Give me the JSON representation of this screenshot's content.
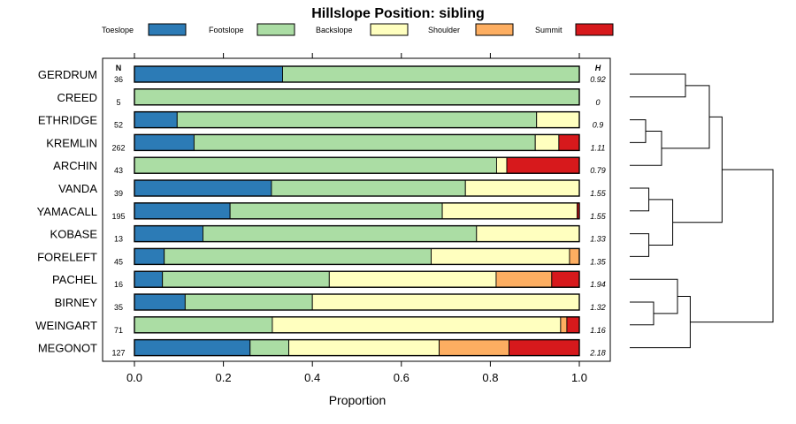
{
  "chart_data": {
    "type": "bar",
    "orientation": "horizontal-stacked",
    "title": "Hillslope Position: sibling",
    "xlabel": "Proportion",
    "ylabel": "",
    "xlim": [
      0,
      1
    ],
    "xticks": [
      "0.0",
      "0.2",
      "0.4",
      "0.6",
      "0.8",
      "1.0"
    ],
    "n_header": "N",
    "h_header": "H",
    "legend": [
      {
        "name": "Toeslope",
        "color": "#2c7bb6"
      },
      {
        "name": "Footslope",
        "color": "#abdda4"
      },
      {
        "name": "Backslope",
        "color": "#ffffbf"
      },
      {
        "name": "Shoulder",
        "color": "#fdae61"
      },
      {
        "name": "Summit",
        "color": "#d7191c"
      }
    ],
    "categories": [
      "GERDRUM",
      "CREED",
      "ETHRIDGE",
      "KREMLIN",
      "ARCHIN",
      "VANDA",
      "YAMACALL",
      "KOBASE",
      "FORELEFT",
      "PACHEL",
      "BIRNEY",
      "WEINGART",
      "MEGONOT"
    ],
    "n": [
      "36",
      "5",
      "52",
      "262",
      "43",
      "39",
      "195",
      "13",
      "45",
      "16",
      "35",
      "71",
      "127"
    ],
    "h": [
      "0.92",
      "0",
      "0.9",
      "1.11",
      "0.79",
      "1.55",
      "1.55",
      "1.33",
      "1.35",
      "1.94",
      "1.32",
      "1.16",
      "2.18"
    ],
    "series": [
      {
        "name": "Toeslope",
        "values": [
          0.333,
          0,
          0.096,
          0.134,
          0,
          0.308,
          0.215,
          0.154,
          0.067,
          0.063,
          0.114,
          0,
          0.26
        ]
      },
      {
        "name": "Footslope",
        "values": [
          0.667,
          1,
          0.808,
          0.767,
          0.814,
          0.436,
          0.477,
          0.615,
          0.6,
          0.375,
          0.286,
          0.31,
          0.087
        ]
      },
      {
        "name": "Backslope",
        "values": [
          0,
          0,
          0.096,
          0.053,
          0.023,
          0.256,
          0.303,
          0.231,
          0.311,
          0.375,
          0.6,
          0.648,
          0.338
        ]
      },
      {
        "name": "Shoulder",
        "values": [
          0,
          0,
          0,
          0,
          0,
          0,
          0,
          0,
          0.022,
          0.125,
          0,
          0.014,
          0.157
        ]
      },
      {
        "name": "Summit",
        "values": [
          0,
          0,
          0,
          0.046,
          0.163,
          0,
          0.005,
          0,
          0,
          0.062,
          0,
          0.028,
          0.158
        ]
      }
    ],
    "dendrogram": {
      "leaves": [
        "GERDRUM",
        "CREED",
        "ETHRIDGE",
        "KREMLIN",
        "ARCHIN",
        "VANDA",
        "YAMACALL",
        "KOBASE",
        "FORELEFT",
        "PACHEL",
        "BIRNEY",
        "WEINGART",
        "MEGONOT"
      ],
      "merges": [
        {
          "a": "ETHRIDGE",
          "b": "KREMLIN",
          "height": 0.1
        },
        {
          "a": "VANDA",
          "b": "YAMACALL",
          "height": 0.12
        },
        {
          "a": "KOBASE",
          "b": "FORELEFT",
          "height": 0.12
        },
        {
          "a": "BIRNEY",
          "b": "WEINGART",
          "height": 0.15
        },
        {
          "a": "ETHRIDGE+KREMLIN",
          "b": "ARCHIN",
          "height": 0.2
        },
        {
          "a": "GERDRUM",
          "b": "CREED",
          "height": 0.35
        },
        {
          "a": "VANDA+YAMACALL",
          "b": "KOBASE+FORELEFT",
          "height": 0.27
        },
        {
          "a": "PACHEL",
          "b": "BIRNEY+WEINGART",
          "height": 0.3
        },
        {
          "a": "GERDRUM+CREED",
          "b": "ETHRIDGE+KREMLIN+ARCHIN",
          "height": 0.5
        },
        {
          "a": "PACHEL+BIRNEY+WEINGART",
          "b": "MEGONOT",
          "height": 0.38
        },
        {
          "a": "GERDRUM..ARCHIN",
          "b": "VANDA..FORELEFT",
          "height": 0.58
        },
        {
          "a": "GERDRUM..FORELEFT",
          "b": "PACHEL..MEGONOT",
          "height": 0.9
        }
      ]
    }
  }
}
